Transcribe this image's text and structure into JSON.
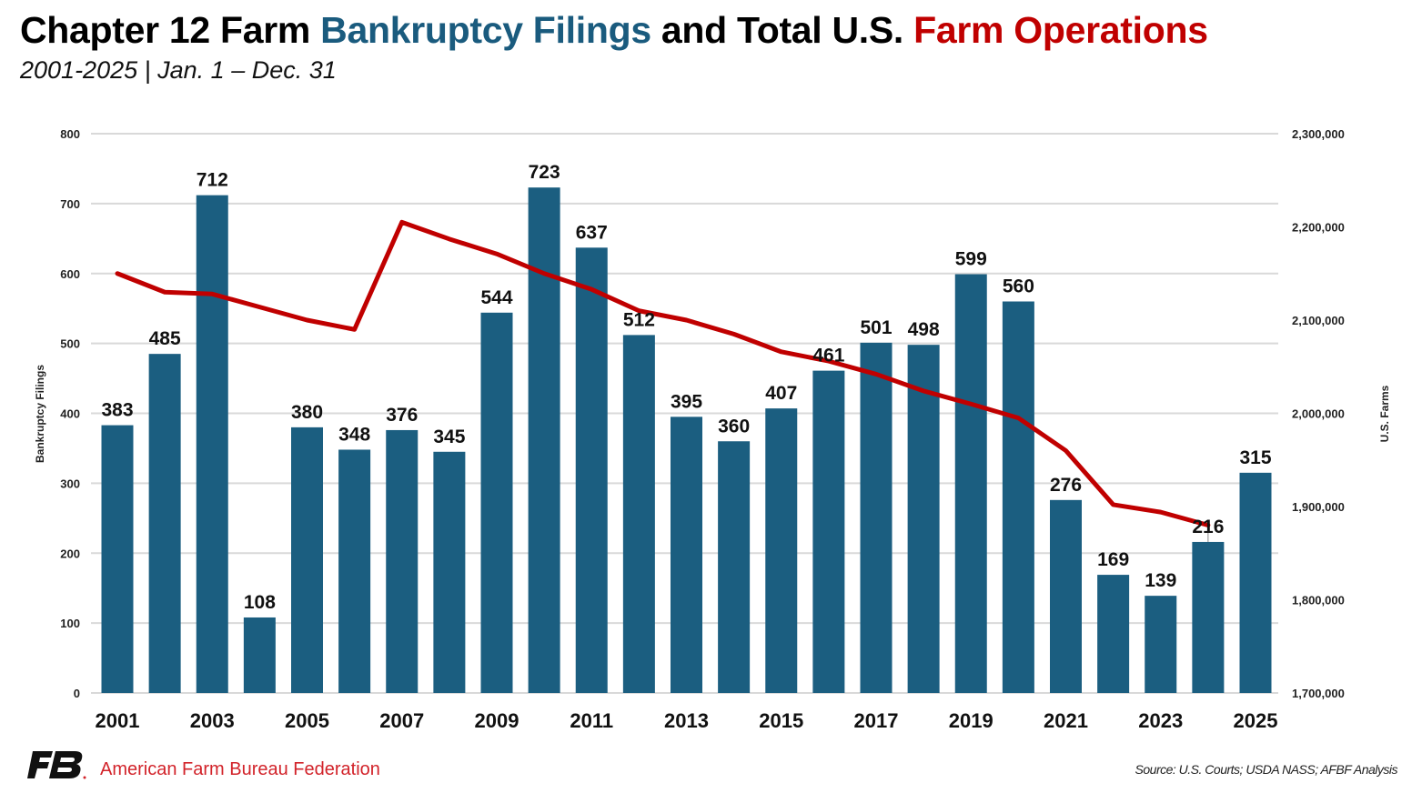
{
  "title": {
    "part1": "Chapter 12 Farm ",
    "part2": "Bankruptcy Filings",
    "part3": " and Total U.S. ",
    "part4": "Farm Operations"
  },
  "subtitle": "2001-2025 | Jan. 1 – Dec. 31",
  "colors": {
    "bars": "#1b5e80",
    "line": "#c00000",
    "title_blue": "#1a5b7e",
    "title_red": "#c00000",
    "grid": "#d9d9d9"
  },
  "chart_data": {
    "type": "bar+line",
    "categories": [
      2001,
      2002,
      2003,
      2004,
      2005,
      2006,
      2007,
      2008,
      2009,
      2010,
      2011,
      2012,
      2013,
      2014,
      2015,
      2016,
      2017,
      2018,
      2019,
      2020,
      2021,
      2022,
      2023,
      2024,
      2025
    ],
    "x_tick_labels": [
      "2001",
      "2003",
      "2005",
      "2007",
      "2009",
      "2011",
      "2013",
      "2015",
      "2017",
      "2019",
      "2021",
      "2023",
      "2025"
    ],
    "series": [
      {
        "axis": "left",
        "type": "bar",
        "values": [
          383,
          485,
          712,
          108,
          380,
          348,
          376,
          345,
          544,
          723,
          637,
          512,
          395,
          360,
          407,
          461,
          501,
          498,
          599,
          560,
          276,
          169,
          139,
          216,
          315
        ]
      },
      {
        "axis": "right",
        "type": "line",
        "values": [
          2150000,
          2130000,
          2128000,
          2114000,
          2100000,
          2090000,
          2205000,
          2187000,
          2171000,
          2150000,
          2133000,
          2110000,
          2100000,
          2085000,
          2066000,
          2056000,
          2042000,
          2024000,
          2010000,
          1995000,
          1960000,
          1902000,
          1894000,
          1880000,
          null
        ]
      }
    ],
    "ylabel_left": "Bankruptcy Filings",
    "ylabel_right": "U.S. Farms",
    "ylim_left": [
      0,
      800
    ],
    "yticks_left": [
      "0",
      "100",
      "200",
      "300",
      "400",
      "500",
      "600",
      "700",
      "800"
    ],
    "ylim_right": [
      1700000,
      2300000
    ],
    "yticks_right": [
      "1,700,000",
      "1,800,000",
      "1,900,000",
      "2,000,000",
      "2,100,000",
      "2,200,000",
      "2,300,000"
    ],
    "grid": true,
    "data_labels": true
  },
  "footer": {
    "logo_text": "FB",
    "organization": "American Farm Bureau Federation",
    "source": "Source: U.S. Courts; USDA NASS; AFBF Analysis"
  }
}
